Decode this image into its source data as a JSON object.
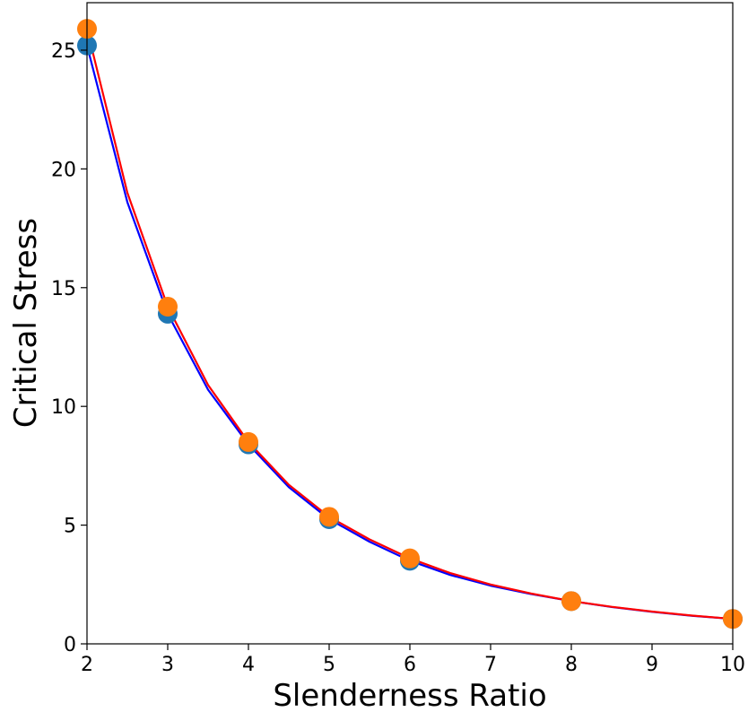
{
  "chart_data": {
    "type": "line",
    "title": "",
    "xlabel": "Slenderness Ratio",
    "ylabel": "Critical Stress",
    "xlim": [
      2,
      10
    ],
    "ylim": [
      0,
      27
    ],
    "xticks": [
      "2",
      "3",
      "4",
      "5",
      "6",
      "7",
      "8",
      "9",
      "10"
    ],
    "yticks": [
      "0",
      "5",
      "10",
      "15",
      "20",
      "25"
    ],
    "grid": false,
    "legend": "none",
    "series": [
      {
        "kind": "scatter",
        "color": "#1f77b4",
        "x": [
          2,
          3,
          4,
          5,
          6,
          8,
          10
        ],
        "y": [
          25.2,
          13.9,
          8.4,
          5.25,
          3.5,
          1.8,
          1.05
        ]
      },
      {
        "kind": "scatter",
        "color": "#ff7f0e",
        "x": [
          2,
          3,
          4,
          5,
          6,
          8,
          10
        ],
        "y": [
          25.9,
          14.2,
          8.5,
          5.35,
          3.6,
          1.8,
          1.05
        ]
      },
      {
        "kind": "line",
        "color": "#0000ff",
        "x": [
          2,
          2.5,
          3,
          3.5,
          4,
          4.5,
          5,
          5.5,
          6,
          6.5,
          7,
          7.5,
          8,
          8.5,
          9,
          9.5,
          10
        ],
        "y": [
          25.2,
          18.6,
          13.9,
          10.7,
          8.4,
          6.6,
          5.25,
          4.3,
          3.5,
          2.9,
          2.45,
          2.1,
          1.8,
          1.55,
          1.35,
          1.18,
          1.05
        ]
      },
      {
        "kind": "line",
        "color": "#ff0000",
        "x": [
          2,
          2.5,
          3,
          3.5,
          4,
          4.5,
          5,
          5.5,
          6,
          6.5,
          7,
          7.5,
          8,
          8.5,
          9,
          9.5,
          10
        ],
        "y": [
          25.9,
          19.0,
          14.2,
          10.9,
          8.5,
          6.7,
          5.35,
          4.4,
          3.6,
          2.98,
          2.5,
          2.12,
          1.8,
          1.56,
          1.36,
          1.19,
          1.05
        ]
      }
    ]
  }
}
